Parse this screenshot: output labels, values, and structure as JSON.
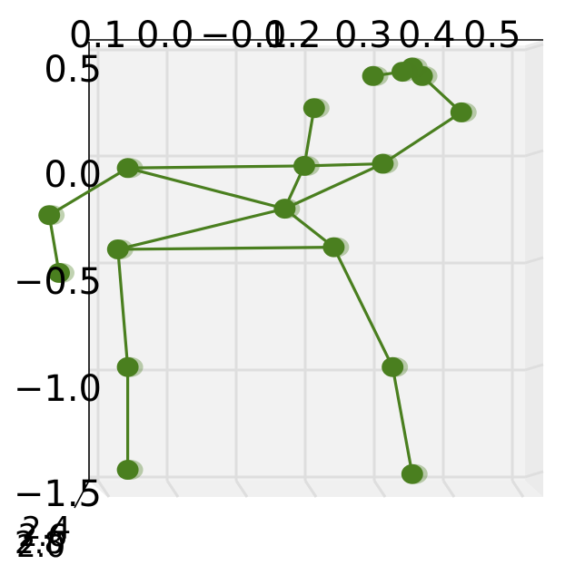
{
  "chart_data": {
    "type": "scatter",
    "title": "",
    "xlabel": "",
    "ylabel": "",
    "x_ticks": [
      "0.1",
      "0.0",
      "−0.1",
      "0.2",
      "0.3",
      "0.4",
      "0.5"
    ],
    "y_ticks": [
      "0.5",
      "0.0",
      "−0.5",
      "−1.0",
      "−1.5"
    ],
    "z_ticks": [
      "2.4",
      "2.6",
      "2.8",
      "2.0"
    ],
    "ylim": [
      -1.5,
      0.5
    ],
    "grid": true,
    "point_color": "#4a7f1f",
    "line_color": "#4a7f1f",
    "joints": [
      {
        "name": "hip-center",
        "x": 0.1,
        "y": -0.17
      },
      {
        "name": "spine",
        "x": 0.12,
        "y": 0.03
      },
      {
        "name": "neck",
        "x": 0.2,
        "y": 0.04
      },
      {
        "name": "head",
        "x": 0.13,
        "y": 0.3
      },
      {
        "name": "left-shoulder",
        "x": -0.06,
        "y": 0.02
      },
      {
        "name": "left-elbow",
        "x": -0.14,
        "y": -0.2
      },
      {
        "name": "left-wrist",
        "x": -0.13,
        "y": -0.47
      },
      {
        "name": "right-shoulder",
        "x": 0.28,
        "y": 0.28
      },
      {
        "name": "right-elbow",
        "x": 0.24,
        "y": 0.45
      },
      {
        "name": "right-wrist",
        "x": 0.23,
        "y": 0.49
      },
      {
        "name": "right-hand",
        "x": 0.22,
        "y": 0.47
      },
      {
        "name": "right-fingertip",
        "x": 0.19,
        "y": 0.45
      },
      {
        "name": "left-hip",
        "x": -0.07,
        "y": -0.36
      },
      {
        "name": "left-knee",
        "x": -0.06,
        "y": -0.91
      },
      {
        "name": "left-ankle",
        "x": -0.06,
        "y": -1.39
      },
      {
        "name": "right-hip",
        "x": 0.15,
        "y": -0.35
      },
      {
        "name": "right-knee",
        "x": 0.21,
        "y": -0.91
      },
      {
        "name": "right-ankle",
        "x": 0.23,
        "y": -1.41
      }
    ],
    "bones": [
      [
        "hip-center",
        "spine"
      ],
      [
        "spine",
        "head"
      ],
      [
        "spine",
        "left-shoulder"
      ],
      [
        "spine",
        "neck"
      ],
      [
        "left-shoulder",
        "hip-center"
      ],
      [
        "left-shoulder",
        "left-elbow"
      ],
      [
        "left-elbow",
        "left-wrist"
      ],
      [
        "neck",
        "hip-center"
      ],
      [
        "neck",
        "right-shoulder"
      ],
      [
        "right-shoulder",
        "right-elbow"
      ],
      [
        "right-elbow",
        "right-wrist"
      ],
      [
        "right-wrist",
        "right-hand"
      ],
      [
        "right-hand",
        "right-fingertip"
      ],
      [
        "hip-center",
        "left-hip"
      ],
      [
        "hip-center",
        "right-hip"
      ],
      [
        "left-hip",
        "right-hip"
      ],
      [
        "left-hip",
        "left-knee"
      ],
      [
        "left-knee",
        "left-ankle"
      ],
      [
        "right-hip",
        "right-knee"
      ],
      [
        "right-knee",
        "right-ankle"
      ]
    ]
  }
}
